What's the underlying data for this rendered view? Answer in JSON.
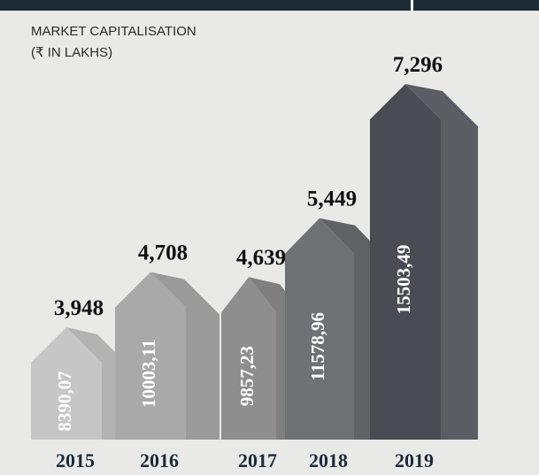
{
  "chart_data": {
    "type": "house-bar",
    "title": "MARKET CAPITALISATION",
    "subtitle": "(₹ IN LAKHS)",
    "categories": [
      "2015",
      "2016",
      "2017",
      "2018",
      "2019"
    ],
    "values": [
      3948,
      4708,
      4639,
      5449,
      7296
    ],
    "value_labels": [
      "3,948",
      "4,708",
      "4,639",
      "5,449",
      "7,296"
    ],
    "inner_values": [
      8390.07,
      10003.11,
      9857.23,
      11578.96,
      15503.49
    ],
    "inner_value_labels": [
      "8390,07",
      "10003,11",
      "9857,23",
      "11578,96",
      "15503,49"
    ],
    "colors": [
      "#c6c6c6",
      "#a9a9a9",
      "#8e8e8e",
      "#707175",
      "#4b4c53"
    ],
    "side_colors": [
      "#b3b3b3",
      "#9a9a9a",
      "#7f7f7f",
      "#616266",
      "#5c5d63"
    ]
  }
}
